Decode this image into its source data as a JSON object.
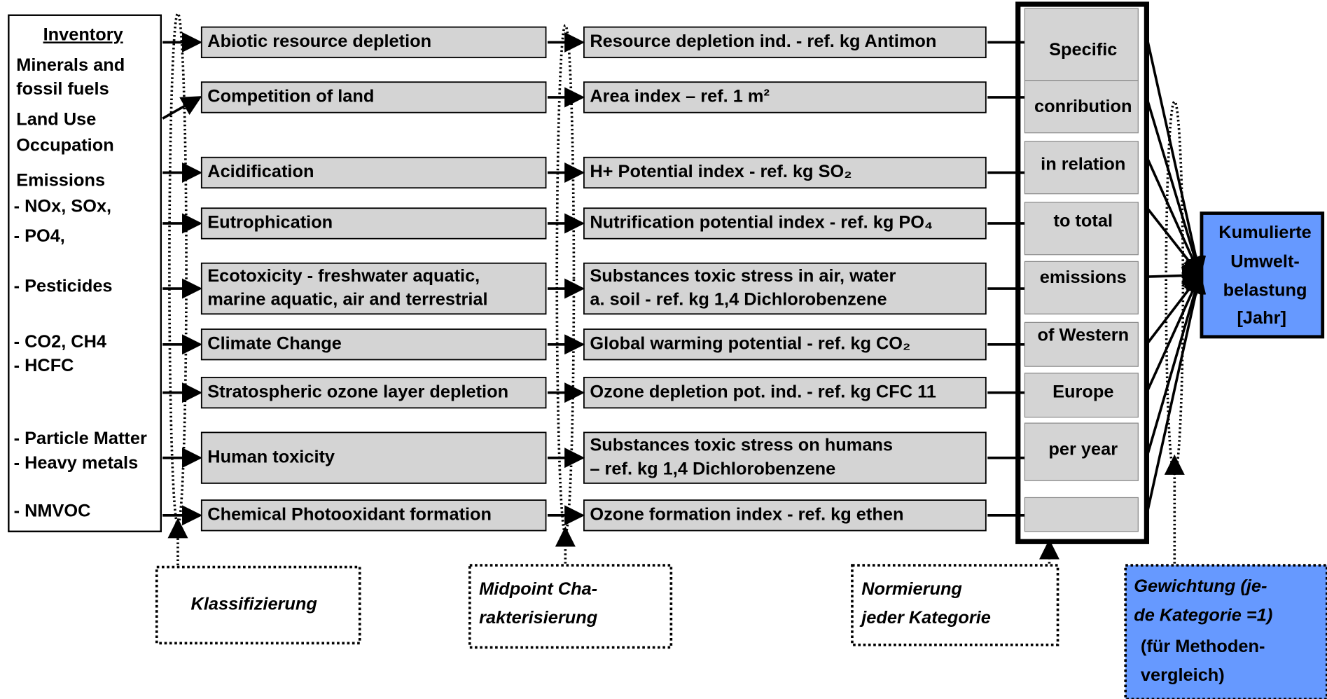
{
  "inventory": {
    "title": "Inventory",
    "items": [
      "Minerals and",
      "fossil fuels",
      "Land Use",
      "Occupation",
      "Emissions",
      "- NOx, SOx,",
      "- PO4,",
      "- Pesticides",
      "- CO2, CH4",
      "- HCFC",
      "- Particle Matter",
      "- Heavy metals",
      "- NMVOC"
    ]
  },
  "categories": [
    [
      "Abiotic resource depletion"
    ],
    [
      "Competition of land"
    ],
    [
      "Acidification"
    ],
    [
      "Eutrophication"
    ],
    [
      "Ecotoxicity - freshwater aquatic,",
      "marine aquatic, air and terrestrial"
    ],
    [
      "Climate Change"
    ],
    [
      "Stratospheric ozone layer depletion"
    ],
    [
      "Human toxicity"
    ],
    [
      "Chemical Photooxidant formation"
    ]
  ],
  "indicators": [
    [
      "Resource depletion ind. - ref. kg Antimon"
    ],
    [
      "Area index – ref. 1 m²"
    ],
    [
      "H+ Potential index - ref. kg SO₂"
    ],
    [
      "Nutrification potential index - ref. kg PO₄"
    ],
    [
      "Substances toxic stress in air, water",
      "a. soil - ref. kg 1,4 Dichlorobenzene"
    ],
    [
      "Global warming potential - ref. kg CO₂"
    ],
    [
      "Ozone depletion pot. ind. - ref. kg CFC 11"
    ],
    [
      "Substances toxic stress on humans",
      "– ref. kg 1,4 Dichlorobenzene"
    ],
    [
      "Ozone formation index - ref. kg ethen"
    ]
  ],
  "normalization": [
    "Specific",
    "conribution",
    "in relation",
    "to total",
    "emissions",
    "of Western",
    "Europe",
    "per year"
  ],
  "result": {
    "lines": [
      "Kumulierte",
      "Umwelt-",
      "belastung"
    ],
    "unit": "[Jahr]"
  },
  "steps": {
    "classification": [
      "Klassifizierung"
    ],
    "characterisation": [
      "Midpoint Cha-",
      "rakterisierung"
    ],
    "normalisation": [
      "Normierung",
      "jeder Kategorie"
    ],
    "weighting": [
      "Gewichtung (je-",
      "de Kategorie =1)"
    ],
    "weighting_note": [
      "(für Methoden-",
      "vergleich)"
    ]
  }
}
